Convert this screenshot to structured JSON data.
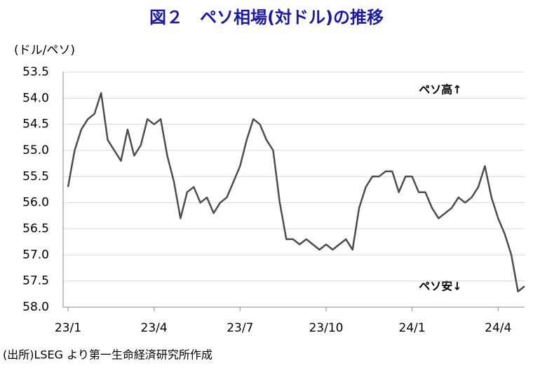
{
  "chart_data": {
    "type": "line",
    "title": "図２　ペソ相場(対ドル)の推移",
    "y_axis_label": "(ドル/ペソ)",
    "annotations": [
      "ペソ高↑",
      "ペソ安↓"
    ],
    "source": "(出所)LSEG より第一生命経済研究所作成",
    "inverted": true,
    "grid": true,
    "categories": [
      "23/1",
      null,
      null,
      null,
      null,
      null,
      null,
      null,
      null,
      null,
      null,
      null,
      null,
      "23/4",
      null,
      null,
      null,
      null,
      null,
      null,
      null,
      null,
      null,
      null,
      null,
      null,
      "23/7",
      null,
      null,
      null,
      null,
      null,
      null,
      null,
      null,
      null,
      null,
      null,
      null,
      "23/10",
      null,
      null,
      null,
      null,
      null,
      null,
      null,
      null,
      null,
      null,
      null,
      null,
      "24/1",
      null,
      null,
      null,
      null,
      null,
      null,
      null,
      null,
      null,
      null,
      null,
      null,
      "24/4",
      null,
      null,
      null,
      null
    ],
    "series": [
      {
        "name": "ペソ相場",
        "color": "#4d4d4d",
        "values": [
          55.7,
          55.0,
          54.6,
          54.4,
          54.3,
          53.9,
          54.8,
          55.0,
          55.2,
          54.6,
          55.1,
          54.9,
          54.4,
          54.5,
          54.4,
          55.1,
          55.6,
          56.3,
          55.8,
          55.7,
          56.0,
          55.9,
          56.2,
          56.0,
          55.9,
          55.6,
          55.3,
          54.8,
          54.4,
          54.5,
          54.8,
          55.0,
          56.0,
          56.7,
          56.7,
          56.8,
          56.7,
          56.8,
          56.9,
          56.8,
          56.9,
          56.8,
          56.7,
          56.9,
          56.1,
          55.7,
          55.5,
          55.5,
          55.4,
          55.4,
          55.8,
          55.5,
          55.5,
          55.8,
          55.8,
          56.1,
          56.3,
          56.2,
          56.1,
          55.9,
          56.0,
          55.9,
          55.7,
          55.3,
          55.9,
          56.3,
          56.6,
          57.0,
          57.7,
          57.6
        ]
      }
    ],
    "ylim": [
      53.5,
      58.0
    ],
    "yticks": [
      53.5,
      {
        "value": 54,
        "label": "54.0"
      },
      54.5,
      {
        "value": 55,
        "label": "55.0"
      },
      55.5,
      {
        "value": 56,
        "label": "56.0"
      },
      56.5,
      {
        "value": 57,
        "label": "57.0"
      },
      57.5,
      {
        "value": 58,
        "label": "58.0"
      }
    ]
  }
}
